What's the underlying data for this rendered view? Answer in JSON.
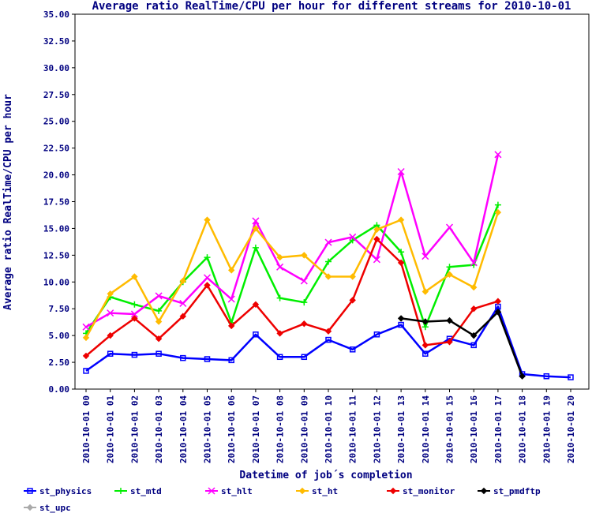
{
  "chart_data": {
    "type": "line",
    "title": "Average ratio RealTime/CPU per hour for different streams for 2010-10-01",
    "xlabel": "Datetime of job´s completion",
    "ylabel": "Average ratio RealTime/CPU per hour",
    "ylim": [
      0,
      35
    ],
    "yticks": [
      "0.00",
      "2.50",
      "5.00",
      "7.50",
      "10.00",
      "12.50",
      "15.00",
      "17.50",
      "20.00",
      "22.50",
      "25.00",
      "27.50",
      "30.00",
      "32.50",
      "35.00"
    ],
    "categories": [
      "2010-10-01 00",
      "2010-10-01 01",
      "2010-10-01 02",
      "2010-10-01 03",
      "2010-10-01 04",
      "2010-10-01 05",
      "2010-10-01 06",
      "2010-10-01 07",
      "2010-10-01 08",
      "2010-10-01 09",
      "2010-10-01 10",
      "2010-10-01 11",
      "2010-10-01 12",
      "2010-10-01 13",
      "2010-10-01 14",
      "2010-10-01 15",
      "2010-10-01 16",
      "2010-10-01 17",
      "2010-10-01 18",
      "2010-10-01 19",
      "2010-10-01 20"
    ],
    "grid": false,
    "legend_position": "bottom",
    "series": [
      {
        "name": "st_physics",
        "color": "#0000ff",
        "marker": "square",
        "values": [
          1.7,
          3.3,
          3.2,
          3.3,
          2.9,
          2.8,
          2.7,
          5.1,
          3.0,
          3.0,
          4.6,
          3.7,
          5.1,
          6.0,
          3.3,
          4.7,
          4.1,
          7.7,
          1.4,
          1.2,
          1.1
        ]
      },
      {
        "name": "st_mtd",
        "color": "#00ee00",
        "marker": "plus",
        "values": [
          5.2,
          8.6,
          7.9,
          7.3,
          10.0,
          12.3,
          6.2,
          13.2,
          8.5,
          8.1,
          11.9,
          13.9,
          15.3,
          12.8,
          5.8,
          11.4,
          11.6,
          17.2,
          null,
          null,
          null
        ]
      },
      {
        "name": "st_hlt",
        "color": "#ff00ff",
        "marker": "x",
        "values": [
          5.8,
          7.1,
          7.0,
          8.7,
          8.0,
          10.4,
          8.4,
          15.7,
          11.4,
          10.1,
          13.7,
          14.2,
          12.1,
          20.3,
          12.4,
          15.1,
          11.8,
          21.9,
          null,
          null,
          null
        ]
      },
      {
        "name": "st_ht",
        "color": "#ffbb00",
        "marker": "diamond",
        "values": [
          4.8,
          8.9,
          10.5,
          6.3,
          10.1,
          15.8,
          11.1,
          15.0,
          12.3,
          12.5,
          10.5,
          10.5,
          14.9,
          15.8,
          9.1,
          10.7,
          9.5,
          16.5,
          null,
          null,
          null
        ]
      },
      {
        "name": "st_monitor",
        "color": "#ee0000",
        "marker": "diamond",
        "values": [
          3.1,
          5.0,
          6.6,
          4.7,
          6.8,
          9.7,
          5.9,
          7.9,
          5.2,
          6.1,
          5.4,
          8.3,
          14.0,
          11.8,
          4.1,
          4.4,
          7.5,
          8.2,
          null,
          null,
          null
        ]
      },
      {
        "name": "st_pmdftp",
        "color": "#000000",
        "marker": "diamond",
        "values": [
          null,
          null,
          null,
          null,
          null,
          null,
          null,
          null,
          null,
          null,
          null,
          null,
          null,
          6.6,
          6.3,
          6.4,
          5.0,
          7.2,
          1.2,
          null,
          null
        ]
      },
      {
        "name": "st_upc",
        "color": "#aaaaaa",
        "marker": "diamond",
        "values": [
          null,
          null,
          null,
          null,
          null,
          null,
          null,
          null,
          null,
          null,
          null,
          null,
          null,
          null,
          null,
          null,
          null,
          null,
          null,
          null,
          null
        ]
      }
    ]
  }
}
